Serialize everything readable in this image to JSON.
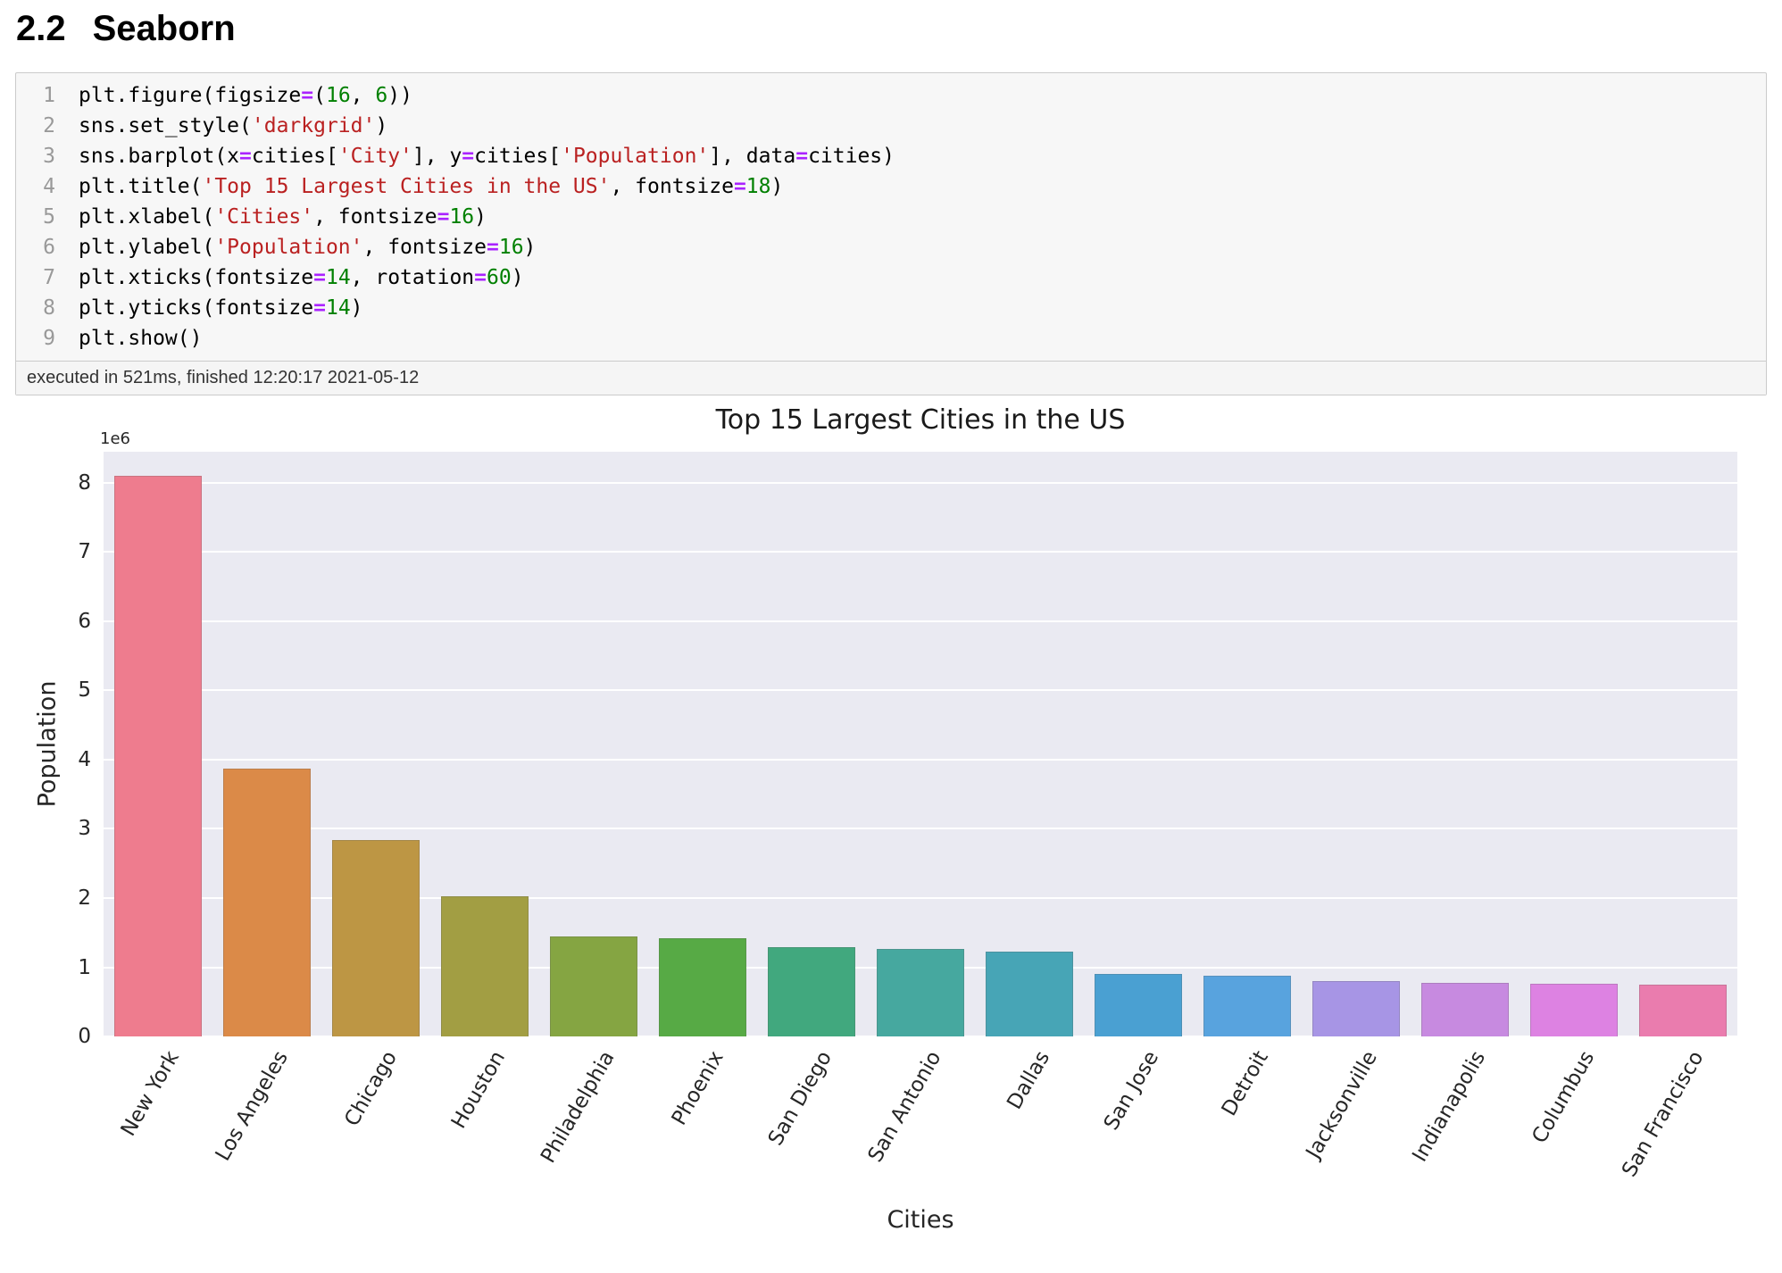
{
  "heading": {
    "number": "2.2",
    "title": "Seaborn"
  },
  "code_cell": {
    "status": "executed in 521ms, finished 12:20:17 2021-05-12",
    "lines": [
      [
        [
          "plt.figure(figsize",
          "p"
        ],
        [
          "=",
          "o"
        ],
        [
          "(",
          "p"
        ],
        [
          "16",
          "n"
        ],
        [
          ", ",
          "p"
        ],
        [
          "6",
          "n"
        ],
        [
          "))",
          "p"
        ]
      ],
      [
        [
          "sns.set_style(",
          "p"
        ],
        [
          "'darkgrid'",
          "s"
        ],
        [
          ")",
          "p"
        ]
      ],
      [
        [
          "sns.barplot(x",
          "p"
        ],
        [
          "=",
          "o"
        ],
        [
          "cities[",
          "p"
        ],
        [
          "'City'",
          "s"
        ],
        [
          "], y",
          "p"
        ],
        [
          "=",
          "o"
        ],
        [
          "cities[",
          "p"
        ],
        [
          "'Population'",
          "s"
        ],
        [
          "], data",
          "p"
        ],
        [
          "=",
          "o"
        ],
        [
          "cities)",
          "p"
        ]
      ],
      [
        [
          "plt.title(",
          "p"
        ],
        [
          "'Top 15 Largest Cities in the US'",
          "s"
        ],
        [
          ", fontsize",
          "p"
        ],
        [
          "=",
          "o"
        ],
        [
          "18",
          "n"
        ],
        [
          ")",
          "p"
        ]
      ],
      [
        [
          "plt.xlabel(",
          "p"
        ],
        [
          "'Cities'",
          "s"
        ],
        [
          ", fontsize",
          "p"
        ],
        [
          "=",
          "o"
        ],
        [
          "16",
          "n"
        ],
        [
          ")",
          "p"
        ]
      ],
      [
        [
          "plt.ylabel(",
          "p"
        ],
        [
          "'Population'",
          "s"
        ],
        [
          ", fontsize",
          "p"
        ],
        [
          "=",
          "o"
        ],
        [
          "16",
          "n"
        ],
        [
          ")",
          "p"
        ]
      ],
      [
        [
          "plt.xticks(fontsize",
          "p"
        ],
        [
          "=",
          "o"
        ],
        [
          "14",
          "n"
        ],
        [
          ", rotation",
          "p"
        ],
        [
          "=",
          "o"
        ],
        [
          "60",
          "n"
        ],
        [
          ")",
          "p"
        ]
      ],
      [
        [
          "plt.yticks(fontsize",
          "p"
        ],
        [
          "=",
          "o"
        ],
        [
          "14",
          "n"
        ],
        [
          ")",
          "p"
        ]
      ],
      [
        [
          "plt.show()",
          "p"
        ]
      ]
    ]
  },
  "chart_data": {
    "type": "bar",
    "title": "Top 15 Largest Cities in the US",
    "xlabel": "Cities",
    "ylabel": "Population",
    "y_multiplier_label": "1e6",
    "categories": [
      "New York",
      "Los Angeles",
      "Chicago",
      "Houston",
      "Philadelphia",
      "Phoenix",
      "San Diego",
      "San Antonio",
      "Dallas",
      "San Jose",
      "Detroit",
      "Jacksonville",
      "Indianapolis",
      "Columbus",
      "San Francisco"
    ],
    "values_millions": [
      8.1,
      3.87,
      2.84,
      2.03,
      1.45,
      1.42,
      1.29,
      1.27,
      1.22,
      0.9,
      0.88,
      0.8,
      0.78,
      0.76,
      0.75
    ],
    "bar_colors": [
      "#ee7c8e",
      "#db8a48",
      "#bd9644",
      "#a29e43",
      "#85a542",
      "#57aa45",
      "#41a87e",
      "#46a89f",
      "#47a5b6",
      "#4aa0d2",
      "#58a3de",
      "#a795e5",
      "#c78ae0",
      "#dd82e2",
      "#ea7cae"
    ],
    "ylim": [
      0,
      8.45
    ],
    "yticks": [
      0,
      1,
      2,
      3,
      4,
      5,
      6,
      7,
      8
    ],
    "xtick_rotation_deg": 60,
    "plot_background": "#eaeaf2",
    "grid_color": "#ffffff",
    "grid": "horizontal",
    "legend": "none"
  }
}
